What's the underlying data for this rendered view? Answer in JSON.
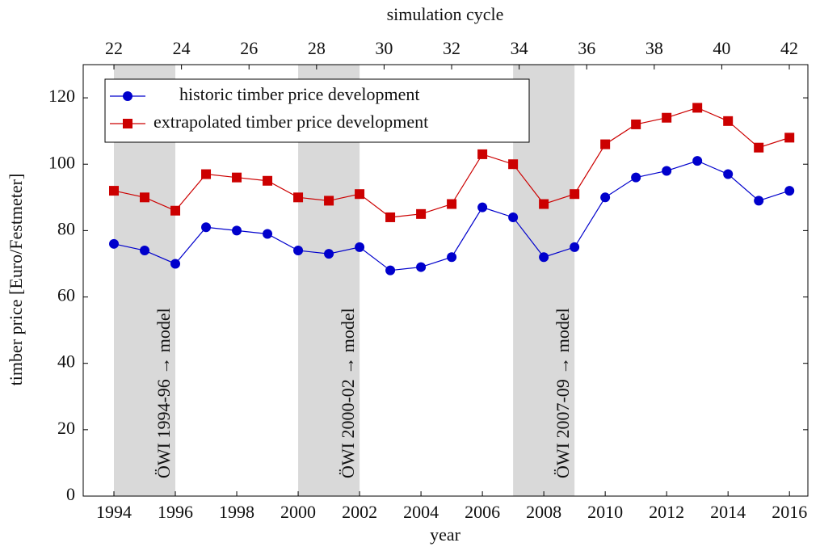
{
  "chart_data": {
    "type": "line",
    "xlabel": "year",
    "ylabel": "timber price [Euro/Festmeter]",
    "x2label": "simulation cycle",
    "x": [
      1994,
      1995,
      1996,
      1997,
      1998,
      1999,
      2000,
      2001,
      2002,
      2003,
      2004,
      2005,
      2006,
      2007,
      2008,
      2009,
      2010,
      2011,
      2012,
      2013,
      2014,
      2015,
      2016
    ],
    "series": [
      {
        "name": "historic timber price development",
        "color": "#0000cc",
        "marker": "circle",
        "values": [
          76,
          74,
          70,
          81,
          80,
          79,
          74,
          73,
          75,
          68,
          69,
          72,
          87,
          84,
          72,
          75,
          90,
          96,
          98,
          101,
          97,
          89,
          92
        ]
      },
      {
        "name": "extrapolated timber price development",
        "color": "#cc0000",
        "marker": "square",
        "values": [
          92,
          90,
          86,
          97,
          96,
          95,
          90,
          89,
          91,
          84,
          85,
          88,
          103,
          100,
          88,
          91,
          106,
          112,
          114,
          117,
          113,
          105,
          108
        ]
      }
    ],
    "shaded_regions": [
      {
        "range": [
          1994,
          1996
        ],
        "label": "ÖWI 1994-96 → model"
      },
      {
        "range": [
          2000,
          2002
        ],
        "label": "ÖWI 2000-02 → model"
      },
      {
        "range": [
          2007,
          2009
        ],
        "label": "ÖWI 2007-09 → model"
      }
    ],
    "xlim": [
      1993,
      2016.6
    ],
    "xticks": [
      1994,
      1996,
      1998,
      2000,
      2002,
      2004,
      2006,
      2008,
      2010,
      2012,
      2014,
      2016
    ],
    "x2lim": [
      21.09,
      42.55
    ],
    "x2ticks": [
      22,
      24,
      26,
      28,
      30,
      32,
      34,
      36,
      38,
      40,
      42
    ],
    "ylim": [
      0,
      130
    ],
    "yticks": [
      0,
      20,
      40,
      60,
      80,
      100,
      120
    ],
    "legend": "upper left",
    "grid": false
  }
}
